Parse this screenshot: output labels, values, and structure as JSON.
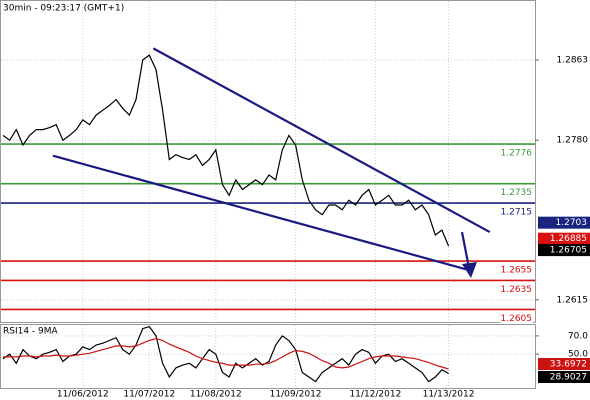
{
  "chart_data": {
    "type": "line",
    "title": "30min - 09:23:17 (GMT+1)",
    "grid": true,
    "categories": [
      null,
      null,
      null,
      null,
      null,
      null,
      null,
      null,
      null,
      null,
      null,
      null,
      "11/06/2012",
      null,
      null,
      null,
      null,
      null,
      null,
      null,
      null,
      null,
      "11/07/2012",
      null,
      null,
      null,
      null,
      null,
      null,
      null,
      null,
      null,
      "11/08/2012",
      null,
      null,
      null,
      null,
      null,
      null,
      null,
      null,
      null,
      null,
      null,
      "11/09/2012",
      null,
      null,
      null,
      null,
      null,
      null,
      null,
      null,
      null,
      null,
      null,
      "11/12/2012",
      null,
      null,
      null,
      null,
      null,
      null,
      null,
      null,
      null,
      null,
      "11/13/2012",
      null,
      null,
      null,
      null,
      null,
      null,
      null,
      null,
      null,
      null,
      null,
      null
    ],
    "ylim": [
      1.2592,
      1.2925
    ],
    "yticks": [
      {
        "value": 1.2615,
        "label": "1.2615"
      },
      {
        "value": 1.278,
        "label": "1.2780"
      },
      1.2863
    ],
    "series": [
      {
        "color": "#000000",
        "values": [
          1.2785,
          1.278,
          1.2791,
          1.2775,
          1.2785,
          1.2791,
          1.2791,
          1.2793,
          1.2796,
          1.278,
          1.2785,
          1.2791,
          1.2801,
          1.2796,
          1.2806,
          1.2811,
          1.2816,
          1.2822,
          1.2813,
          1.2806,
          1.2822,
          1.2863,
          1.2868,
          1.2853,
          1.2811,
          1.276,
          1.2765,
          1.2762,
          1.276,
          1.2765,
          1.2754,
          1.276,
          1.277,
          1.2734,
          1.2723,
          1.2739,
          1.2729,
          1.2734,
          1.2739,
          1.2734,
          1.2744,
          1.2739,
          1.277,
          1.2785,
          1.2775,
          1.2739,
          1.2718,
          1.2708,
          1.2703,
          1.2713,
          1.2713,
          1.2708,
          1.2718,
          1.2713,
          1.2723,
          1.2729,
          1.2713,
          1.2718,
          1.2723,
          1.2713,
          1.2713,
          1.2718,
          1.2708,
          1.2713,
          1.2703,
          1.2682,
          1.2687,
          1.26705,
          null,
          null,
          null,
          null,
          null,
          null,
          null,
          null,
          null,
          null,
          null,
          null
        ]
      }
    ],
    "levels": [
      {
        "value": 1.2776,
        "color": "#3c9a3c"
      },
      {
        "value": 1.2735,
        "color": "#3c9a3c"
      },
      {
        "value": 1.2715,
        "color": "#1a237e"
      },
      {
        "value": 1.2655,
        "color": "#d81010"
      },
      {
        "value": 1.2635,
        "color": "#d81010"
      },
      {
        "value": 1.2605,
        "color": "#d81010"
      }
    ],
    "trend_lines": [
      {
        "x": [
          22.6,
          73.2
        ],
        "values": [
          1.2875,
          1.2685
        ],
        "color": "#1a1a80"
      },
      {
        "x": [
          7.5,
          69.9
        ],
        "values": [
          1.2764,
          1.2646
        ],
        "color": "#1a1a80"
      }
    ],
    "price_tags": [
      {
        "value": 1.2703,
        "color": "#1a237e"
      },
      {
        "value": 1.26885,
        "color": "#d81010"
      }
    ],
    "indicator": {
      "title": "RSI14 - 9MA",
      "ylim": [
        13,
        83
      ],
      "yticks": [
        {
          "value": 70,
          "label": "70.0"
        },
        {
          "value": 50,
          "label": "50.0"
        }
      ],
      "series": [
        {
          "color": "#000000",
          "values": [
            45,
            50,
            40,
            55,
            48,
            45,
            50,
            52,
            55,
            42,
            48,
            50,
            58,
            55,
            60,
            62,
            65,
            68,
            55,
            50,
            60,
            78,
            80,
            70,
            40,
            25,
            35,
            38,
            40,
            35,
            45,
            55,
            50,
            30,
            25,
            40,
            35,
            40,
            45,
            38,
            42,
            60,
            70,
            65,
            55,
            30,
            25,
            20,
            30,
            35,
            40,
            45,
            38,
            50,
            55,
            52,
            40,
            48,
            50,
            42,
            45,
            40,
            35,
            30,
            20,
            25,
            33,
            28.9027,
            null,
            null,
            null,
            null,
            null,
            null,
            null,
            null,
            null,
            null,
            null,
            null
          ]
        },
        {
          "color": "#cc1111",
          "values": [
            47,
            47,
            47,
            48,
            48,
            47,
            48,
            48,
            49,
            48,
            48,
            49,
            50,
            51,
            53,
            55,
            57,
            59,
            59,
            58,
            59,
            62,
            65,
            67,
            65,
            61,
            58,
            55,
            52,
            48,
            45,
            43,
            41,
            40,
            38,
            38,
            38,
            38,
            39,
            39,
            40,
            43,
            47,
            51,
            54,
            53,
            51,
            47,
            43,
            40,
            36,
            35,
            36,
            39,
            42,
            45,
            47,
            48,
            48,
            48,
            47,
            46,
            45,
            43,
            41,
            38,
            36,
            33.6972,
            null,
            null,
            null,
            null,
            null,
            null,
            null,
            null,
            null,
            null,
            null,
            null
          ]
        }
      ]
    }
  }
}
